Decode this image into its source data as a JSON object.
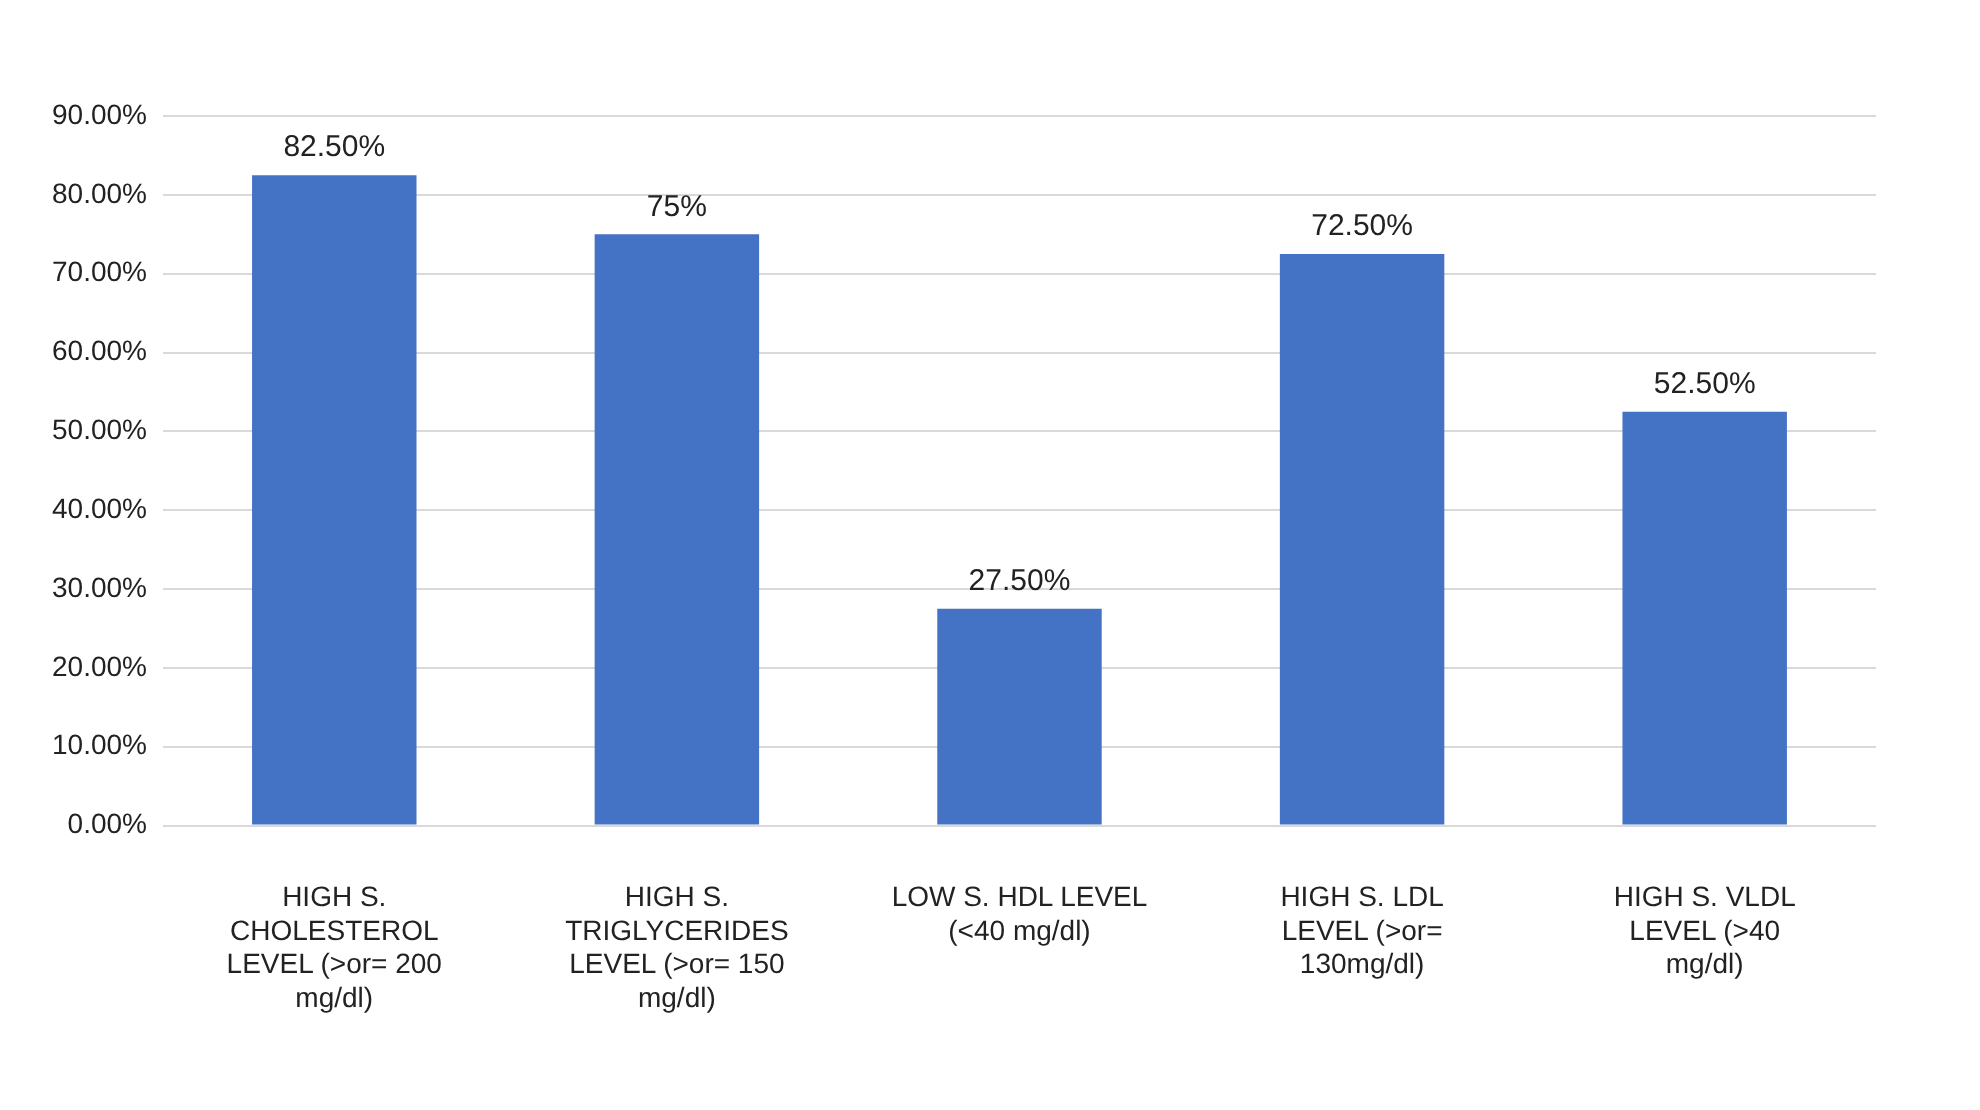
{
  "chart_data": {
    "type": "bar",
    "categories": [
      "HIGH S. CHOLESTEROL LEVEL (>or= 200 mg/dl)",
      "HIGH S. TRIGLYCERIDES LEVEL (>or= 150 mg/dl)",
      "LOW S. HDL LEVEL (<40 mg/dl)",
      "HIGH S. LDL LEVEL (>or= 130mg/dl)",
      "HIGH S. VLDL LEVEL (>40 mg/dl)"
    ],
    "values": [
      82.5,
      75,
      27.5,
      72.5,
      52.5
    ],
    "value_labels": [
      "82.50%",
      "75%",
      "27.50%",
      "72.50%",
      "52.50%"
    ],
    "color": "#4472c4",
    "ylim": [
      0,
      90
    ],
    "yticks": [
      {
        "value": 0,
        "label": "0.00%"
      },
      {
        "value": 10,
        "label": "10.00%"
      },
      {
        "value": 20,
        "label": "20.00%"
      },
      {
        "value": 30,
        "label": "30.00%"
      },
      {
        "value": 40,
        "label": "40.00%"
      },
      {
        "value": 50,
        "label": "50.00%"
      },
      {
        "value": 60,
        "label": "60.00%"
      },
      {
        "value": 70,
        "label": "70.00%"
      },
      {
        "value": 80,
        "label": "80.00%"
      },
      {
        "value": 90,
        "label": "90.00%"
      }
    ],
    "grid": true
  }
}
